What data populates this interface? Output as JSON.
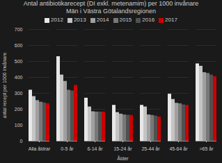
{
  "chart_data": {
    "type": "bar",
    "title": "Antal antibiotikarecept (DI exkl. metenamim) per 1000 invånare",
    "subtitle": "Män i Västra Götalandsregionen",
    "x_label": "Ålder",
    "y_label": "antal recept per 1000 invånare",
    "categories": [
      "Alla åldrar",
      "0-5 år",
      "6-14 år",
      "15-24 år",
      "25-44 år",
      "45-64 år",
      ">65 år"
    ],
    "series": [
      {
        "name": "2012",
        "color": "#e8e8e8",
        "values": [
          320,
          530,
          270,
          225,
          225,
          295,
          485
        ]
      },
      {
        "name": "2013",
        "color": "#c4c4c4",
        "values": [
          280,
          415,
          215,
          180,
          215,
          262,
          470
        ]
      },
      {
        "name": "2014",
        "color": "#a0a0a0",
        "values": [
          255,
          375,
          185,
          170,
          165,
          238,
          430
        ]
      },
      {
        "name": "2015",
        "color": "#787878",
        "values": [
          245,
          320,
          183,
          165,
          162,
          235,
          425
        ]
      },
      {
        "name": "2016",
        "color": "#505050",
        "values": [
          240,
          315,
          183,
          163,
          158,
          228,
          415
        ]
      },
      {
        "name": "2017",
        "color": "#cc0000",
        "values": [
          235,
          350,
          183,
          162,
          152,
          225,
          405
        ]
      }
    ],
    "ylim": [
      0,
      700
    ],
    "yticks": [
      0,
      100,
      200,
      300,
      400,
      500,
      600,
      700
    ],
    "grid": true,
    "legend": "top"
  }
}
